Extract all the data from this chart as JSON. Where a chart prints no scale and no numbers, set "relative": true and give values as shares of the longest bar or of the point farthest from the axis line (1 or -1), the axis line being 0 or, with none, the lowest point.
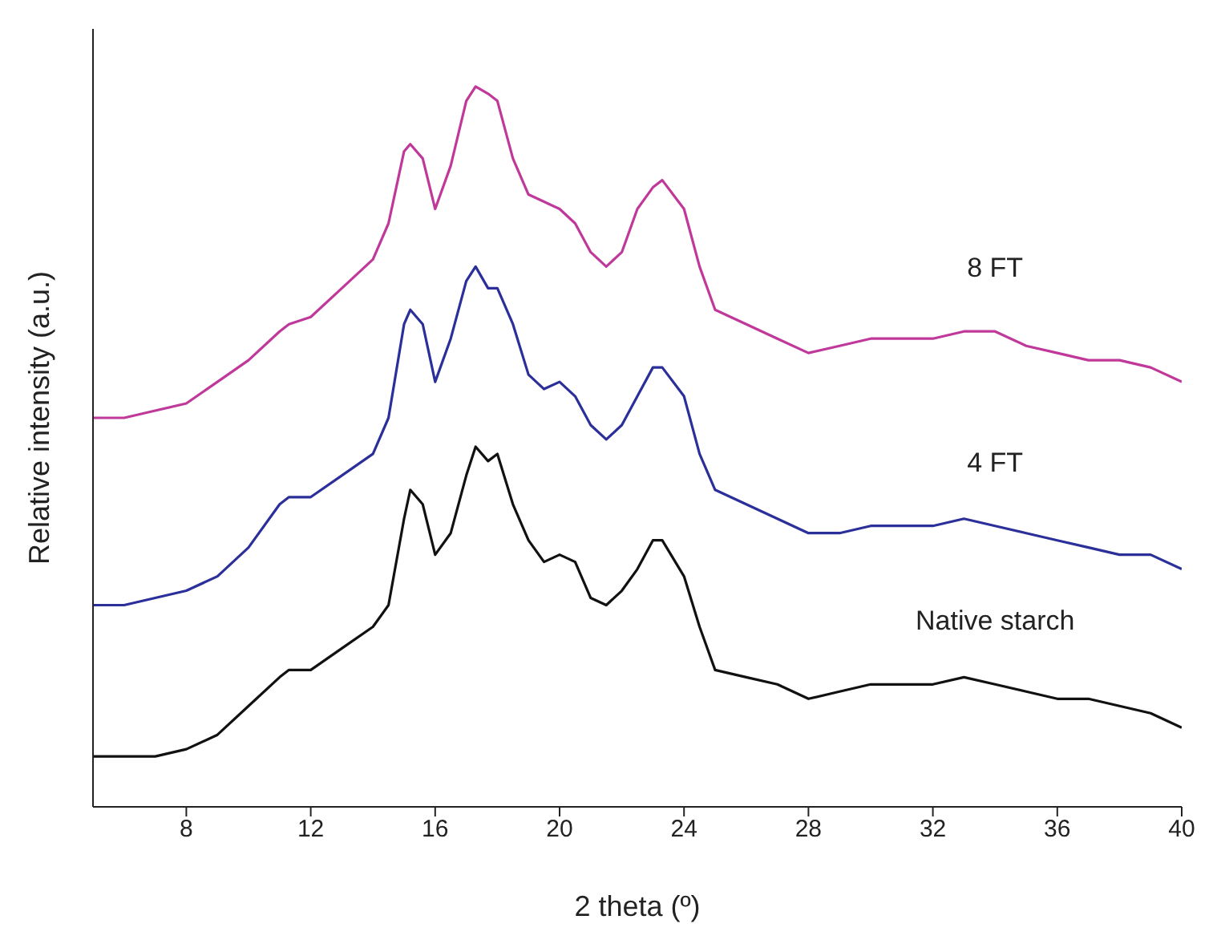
{
  "chart_data": {
    "type": "line",
    "relative": true,
    "xlabel": "2 theta (º)",
    "ylabel": "Relative intensity (a.u.)",
    "xlim": [
      5,
      40
    ],
    "xticks": [
      8,
      12,
      16,
      20,
      24,
      28,
      32,
      36,
      40
    ],
    "grid": false,
    "legend": false,
    "marker": "none",
    "line_style": "solid",
    "x": [
      5,
      6,
      7,
      8,
      9,
      10,
      11,
      11.3,
      12,
      13,
      14,
      14.5,
      15,
      15.2,
      15.6,
      16,
      16.5,
      17,
      17.3,
      17.7,
      18,
      18.5,
      19,
      19.5,
      20,
      20.5,
      21,
      21.5,
      22,
      22.5,
      23,
      23.3,
      24,
      24.5,
      25,
      26,
      27,
      28,
      29,
      30,
      31,
      32,
      33,
      34,
      35,
      36,
      37,
      38,
      39,
      40
    ],
    "series": [
      {
        "name": "8 FT",
        "color": "#c0399a",
        "values": [
          0.54,
          0.54,
          0.55,
          0.56,
          0.59,
          0.62,
          0.66,
          0.67,
          0.68,
          0.72,
          0.76,
          0.81,
          0.91,
          0.92,
          0.9,
          0.83,
          0.89,
          0.98,
          1,
          0.99,
          0.98,
          0.9,
          0.85,
          0.84,
          0.83,
          0.81,
          0.77,
          0.75,
          0.77,
          0.83,
          0.86,
          0.87,
          0.83,
          0.75,
          0.69,
          0.67,
          0.65,
          0.63,
          0.64,
          0.65,
          0.65,
          0.65,
          0.66,
          0.66,
          0.64,
          0.63,
          0.62,
          0.62,
          0.61,
          0.59
        ]
      },
      {
        "name": "4 FT",
        "color": "#2b2f9a",
        "values": [
          0.28,
          0.28,
          0.29,
          0.3,
          0.32,
          0.36,
          0.42,
          0.43,
          0.43,
          0.46,
          0.49,
          0.54,
          0.67,
          0.69,
          0.67,
          0.59,
          0.65,
          0.73,
          0.75,
          0.72,
          0.72,
          0.67,
          0.6,
          0.58,
          0.59,
          0.57,
          0.53,
          0.51,
          0.53,
          0.57,
          0.61,
          0.61,
          0.57,
          0.49,
          0.44,
          0.42,
          0.4,
          0.38,
          0.38,
          0.39,
          0.39,
          0.39,
          0.4,
          0.39,
          0.38,
          0.37,
          0.36,
          0.35,
          0.35,
          0.33
        ]
      },
      {
        "name": "Native starch",
        "color": "#111111",
        "values": [
          0.07,
          0.07,
          0.07,
          0.08,
          0.1,
          0.14,
          0.18,
          0.19,
          0.19,
          0.22,
          0.25,
          0.28,
          0.4,
          0.44,
          0.42,
          0.35,
          0.38,
          0.46,
          0.5,
          0.48,
          0.49,
          0.42,
          0.37,
          0.34,
          0.35,
          0.34,
          0.29,
          0.28,
          0.3,
          0.33,
          0.37,
          0.37,
          0.32,
          0.25,
          0.19,
          0.18,
          0.17,
          0.15,
          0.16,
          0.17,
          0.17,
          0.17,
          0.18,
          0.17,
          0.16,
          0.15,
          0.15,
          0.14,
          0.13,
          0.11
        ]
      }
    ]
  }
}
